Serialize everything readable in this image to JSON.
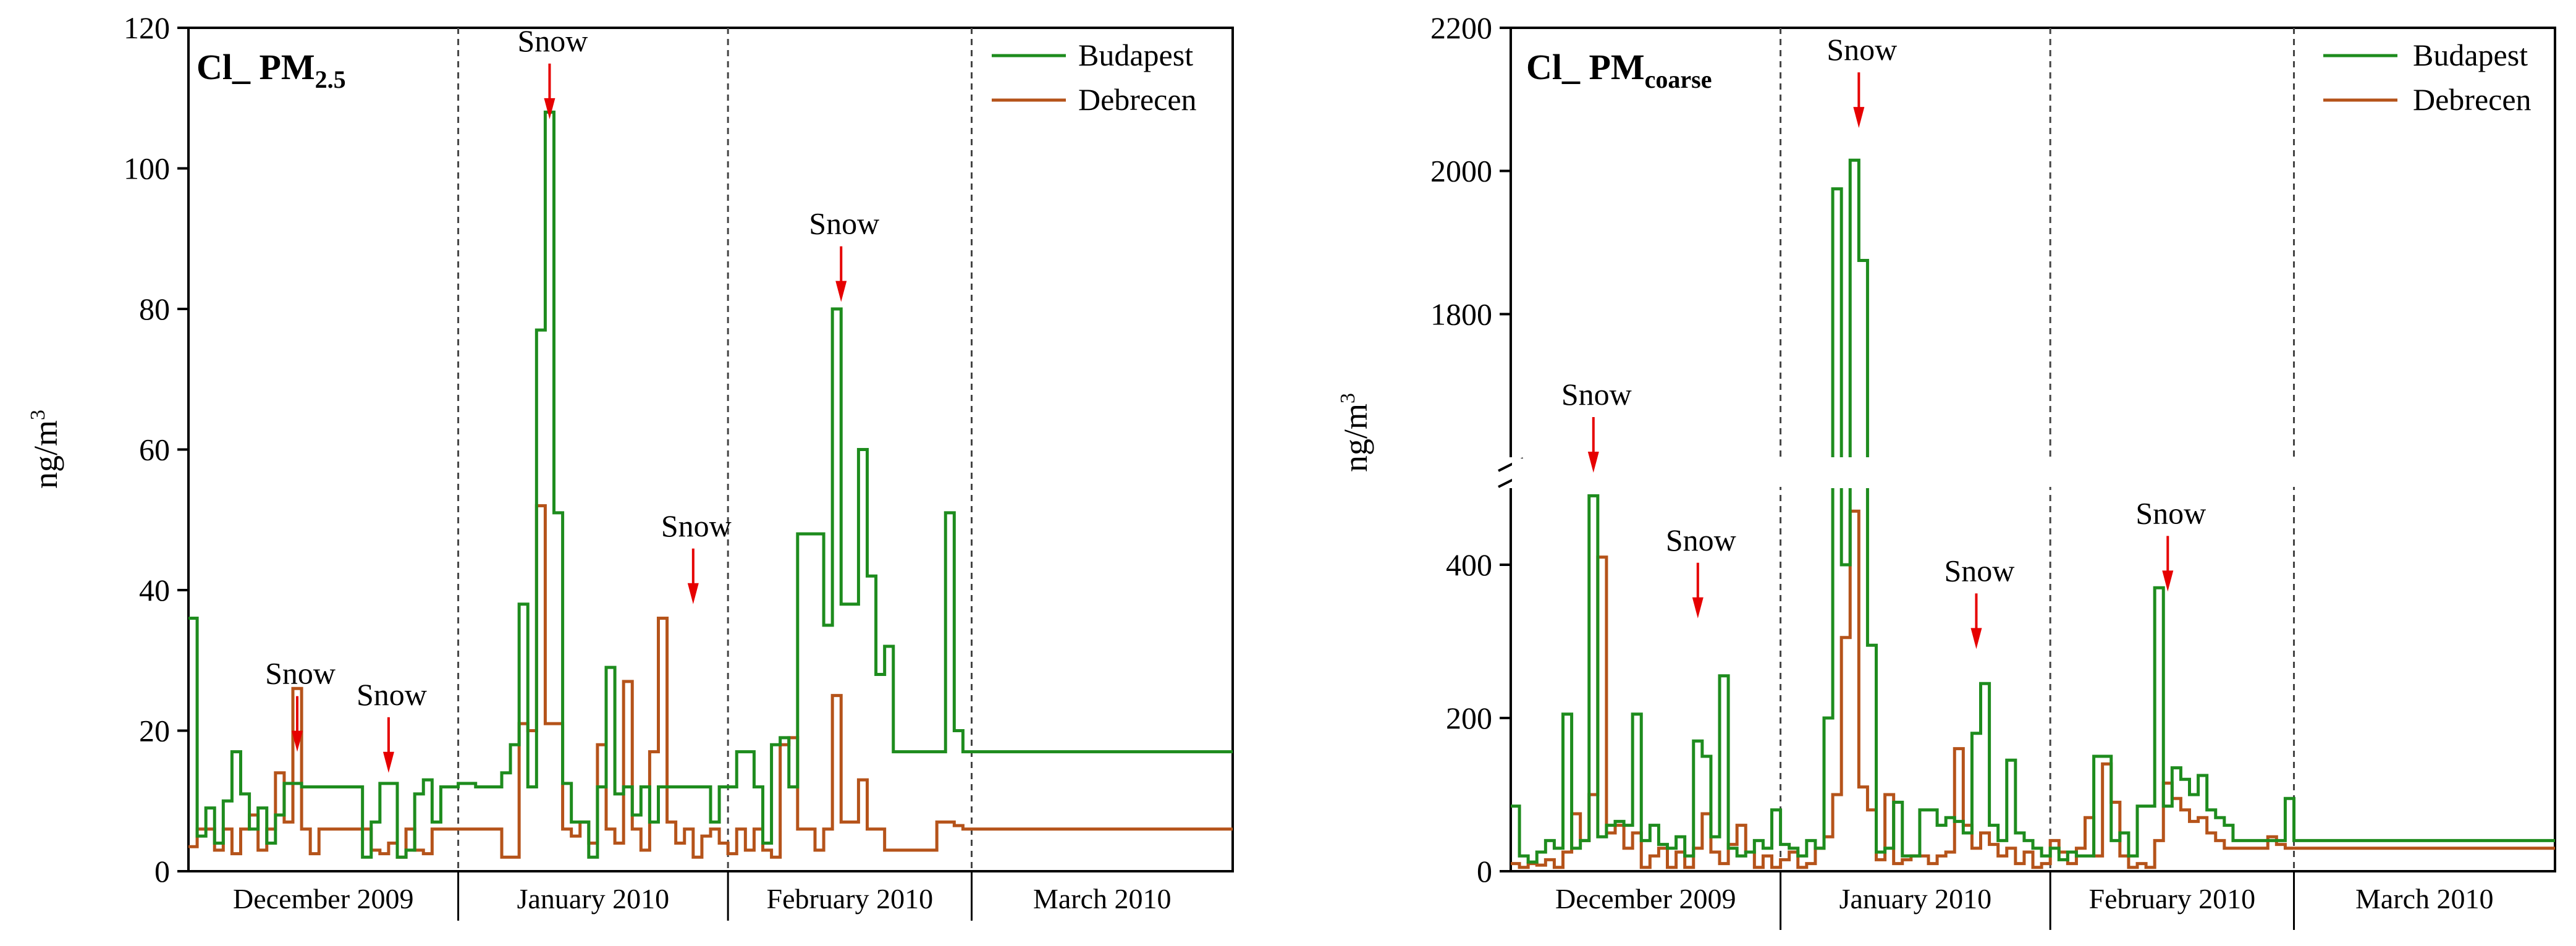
{
  "chart_data": [
    {
      "type": "line",
      "title_main": "Cl_ PM",
      "title_sub": "2.5",
      "ylabel": "ng/m",
      "ylabel_sup": "3",
      "ylim": [
        0,
        120
      ],
      "yticks": [
        "0",
        "20",
        "40",
        "60",
        "80",
        "100",
        "120"
      ],
      "months": [
        "December 2009",
        "January 2010",
        "February 2010",
        "March 2010"
      ],
      "legend_position": "top-right",
      "legend": [
        "Budapest",
        "Debrecen"
      ],
      "series": [
        {
          "name": "Budapest",
          "color": "#1e8c1e",
          "x": [
            0,
            1,
            2,
            3,
            4,
            5,
            6,
            7,
            8,
            9,
            10,
            11,
            12,
            13,
            14,
            15,
            16,
            17,
            18,
            19,
            20,
            21,
            22,
            23,
            24,
            25,
            26,
            27,
            28,
            29,
            30,
            31,
            32,
            33,
            34,
            35,
            36,
            37,
            38,
            39,
            40,
            41,
            42,
            43,
            44,
            45,
            46,
            47,
            48,
            49,
            50,
            51,
            52,
            53,
            54,
            55,
            56,
            57,
            58,
            59,
            60,
            61,
            62,
            63,
            64,
            65,
            66,
            67,
            68,
            69,
            70,
            71,
            72,
            73,
            74,
            75,
            76,
            77,
            78,
            79,
            80,
            81,
            82,
            83,
            84,
            85,
            86,
            87,
            88,
            89,
            90,
            91,
            92,
            93,
            94,
            95,
            96,
            97,
            98,
            99,
            100,
            101,
            102,
            103,
            104,
            105,
            106,
            107,
            108,
            109,
            110,
            111,
            112,
            113,
            114,
            115,
            116,
            117,
            118,
            119,
            120
          ],
          "y": [
            36,
            5,
            9,
            4,
            10,
            17,
            11,
            6,
            9,
            4,
            8,
            12.5,
            12.5,
            12,
            12,
            12,
            12,
            12,
            12,
            12,
            2,
            7,
            12.5,
            12.5,
            2,
            3,
            11,
            13,
            7,
            12,
            12,
            12.5,
            12.5,
            12,
            12,
            12,
            14,
            18,
            38,
            12,
            77,
            108,
            51,
            12.5,
            7,
            7,
            2,
            12,
            29,
            11,
            12,
            8,
            12,
            7,
            12,
            12,
            12,
            12,
            12,
            12,
            7,
            12,
            12,
            17,
            17,
            12,
            4,
            18,
            19,
            12,
            48,
            48,
            48,
            35,
            80,
            38,
            38,
            60,
            42,
            28,
            32,
            17,
            17,
            17,
            17,
            17,
            17,
            51,
            20,
            17,
            17,
            17,
            17,
            17,
            17,
            17,
            17,
            17,
            17,
            17,
            17,
            17,
            17,
            17,
            17,
            17,
            17,
            17,
            17,
            17,
            17,
            17,
            17,
            17,
            17,
            17,
            17,
            17,
            17,
            17,
            17
          ]
        },
        {
          "name": "Debrecen",
          "color": "#b5531a",
          "x": [
            0,
            1,
            2,
            3,
            4,
            5,
            6,
            7,
            8,
            9,
            10,
            11,
            12,
            13,
            14,
            15,
            16,
            17,
            18,
            19,
            20,
            21,
            22,
            23,
            24,
            25,
            26,
            27,
            28,
            29,
            30,
            31,
            32,
            33,
            34,
            35,
            36,
            37,
            38,
            39,
            40,
            41,
            42,
            43,
            44,
            45,
            46,
            47,
            48,
            49,
            50,
            51,
            52,
            53,
            54,
            55,
            56,
            57,
            58,
            59,
            60,
            61,
            62,
            63,
            64,
            65,
            66,
            67,
            68,
            69,
            70,
            71,
            72,
            73,
            74,
            75,
            76,
            77,
            78,
            79,
            80,
            81,
            82,
            83,
            84,
            85,
            86,
            87,
            88,
            89,
            90,
            91,
            92,
            93,
            94,
            95,
            96,
            97,
            98,
            99,
            100,
            101,
            102,
            103,
            104,
            105,
            106,
            107,
            108,
            109,
            110,
            111,
            112,
            113,
            114,
            115,
            116,
            117,
            118,
            119,
            120
          ],
          "y": [
            3.5,
            6,
            6,
            3,
            6,
            2.5,
            6,
            8,
            3,
            6,
            14,
            7,
            26,
            6,
            2.5,
            6,
            6,
            6,
            6,
            6,
            6,
            3,
            2.5,
            4,
            2,
            6,
            3,
            2.5,
            6,
            6,
            6,
            6,
            6,
            6,
            6,
            6,
            2,
            2,
            21,
            20,
            52,
            21,
            21,
            6,
            5,
            7,
            4,
            18,
            6,
            4,
            27,
            6,
            3,
            17,
            36,
            7,
            4,
            6,
            2,
            5,
            6,
            4,
            2.5,
            6,
            3,
            6,
            3,
            2,
            18,
            19,
            6,
            6,
            3,
            6,
            25,
            7,
            7,
            13,
            6,
            6,
            3,
            3,
            3,
            3,
            3,
            3,
            7,
            7,
            6.5,
            6,
            6,
            6,
            6,
            6,
            6,
            6,
            6,
            6,
            6,
            6,
            6,
            6,
            6,
            6,
            6,
            6,
            6,
            6,
            6,
            6,
            6,
            6,
            6,
            6,
            6,
            6,
            6,
            6,
            6,
            6,
            6
          ]
        }
      ],
      "annotations": [
        {
          "text": "Snow",
          "x": 12.5,
          "y": 17
        },
        {
          "text": "Snow",
          "x": 23,
          "y": 14
        },
        {
          "text": "Snow",
          "x": 41.5,
          "y": 107
        },
        {
          "text": "Snow",
          "x": 58,
          "y": 38
        },
        {
          "text": "Snow",
          "x": 75,
          "y": 81
        }
      ]
    },
    {
      "type": "line",
      "title_main": "Cl_ PM",
      "title_sub": "coarse",
      "ylabel": "ng/m",
      "ylabel_sup": "3",
      "broken_axis": true,
      "ylim_lower": [
        0,
        500
      ],
      "ylim_upper": [
        1600,
        2200
      ],
      "yticks_lower": [
        "0",
        "200",
        "400"
      ],
      "yticks_upper": [
        "1800",
        "2000",
        "2200"
      ],
      "months": [
        "December 2009",
        "January 2010",
        "February 2010",
        "March 2010"
      ],
      "legend_position": "top-right",
      "legend": [
        "Budapest",
        "Debrecen"
      ],
      "series": [
        {
          "name": "Budapest",
          "color": "#1e8c1e",
          "x": [
            0,
            1,
            2,
            3,
            4,
            5,
            6,
            7,
            8,
            9,
            10,
            11,
            12,
            13,
            14,
            15,
            16,
            17,
            18,
            19,
            20,
            21,
            22,
            23,
            24,
            25,
            26,
            27,
            28,
            29,
            30,
            31,
            32,
            33,
            34,
            35,
            36,
            37,
            38,
            39,
            40,
            41,
            42,
            43,
            44,
            45,
            46,
            47,
            48,
            49,
            50,
            51,
            52,
            53,
            54,
            55,
            56,
            57,
            58,
            59,
            60,
            61,
            62,
            63,
            64,
            65,
            66,
            67,
            68,
            69,
            70,
            71,
            72,
            73,
            74,
            75,
            76,
            77,
            78,
            79,
            80,
            81,
            82,
            83,
            84,
            85,
            86,
            87,
            88,
            89,
            90,
            91,
            92,
            93,
            94,
            95,
            96,
            97,
            98,
            99,
            100,
            101,
            102,
            103,
            104,
            105,
            106,
            107,
            108,
            109,
            110,
            111,
            112,
            113,
            114,
            115,
            116,
            117,
            118,
            119,
            120
          ],
          "y": [
            85,
            20,
            12,
            25,
            40,
            30,
            205,
            30,
            40,
            490,
            45,
            60,
            65,
            60,
            205,
            40,
            60,
            35,
            30,
            45,
            20,
            170,
            150,
            45,
            255,
            30,
            20,
            25,
            40,
            30,
            80,
            35,
            30,
            20,
            40,
            30,
            200,
            1975,
            400,
            2015,
            1875,
            295,
            25,
            30,
            90,
            20,
            20,
            80,
            80,
            60,
            70,
            65,
            50,
            180,
            245,
            60,
            40,
            145,
            50,
            40,
            30,
            20,
            30,
            15,
            25,
            20,
            20,
            150,
            150,
            40,
            50,
            20,
            85,
            85,
            370,
            85,
            135,
            120,
            100,
            125,
            80,
            70,
            60,
            40,
            40,
            40,
            40,
            40,
            40,
            95,
            40,
            40,
            40,
            40,
            40,
            40,
            40,
            40,
            40,
            40,
            40,
            40,
            40,
            40,
            40,
            40,
            40,
            40,
            40,
            40,
            40,
            40,
            40,
            40,
            40,
            40,
            40,
            40,
            40,
            40,
            40
          ]
        },
        {
          "name": "Debrecen",
          "color": "#b5531a",
          "x": [
            0,
            1,
            2,
            3,
            4,
            5,
            6,
            7,
            8,
            9,
            10,
            11,
            12,
            13,
            14,
            15,
            16,
            17,
            18,
            19,
            20,
            21,
            22,
            23,
            24,
            25,
            26,
            27,
            28,
            29,
            30,
            31,
            32,
            33,
            34,
            35,
            36,
            37,
            38,
            39,
            40,
            41,
            42,
            43,
            44,
            45,
            46,
            47,
            48,
            49,
            50,
            51,
            52,
            53,
            54,
            55,
            56,
            57,
            58,
            59,
            60,
            61,
            62,
            63,
            64,
            65,
            66,
            67,
            68,
            69,
            70,
            71,
            72,
            73,
            74,
            75,
            76,
            77,
            78,
            79,
            80,
            81,
            82,
            83,
            84,
            85,
            86,
            87,
            88,
            89,
            90,
            91,
            92,
            93,
            94,
            95,
            96,
            97,
            98,
            99,
            100,
            101,
            102,
            103,
            104,
            105,
            106,
            107,
            108,
            109,
            110,
            111,
            112,
            113,
            114,
            115,
            116,
            117,
            118,
            119,
            120
          ],
          "y": [
            10,
            5,
            10,
            8,
            15,
            5,
            25,
            75,
            40,
            100,
            410,
            50,
            60,
            30,
            50,
            5,
            20,
            30,
            5,
            25,
            5,
            30,
            75,
            25,
            10,
            35,
            60,
            25,
            5,
            20,
            5,
            15,
            25,
            5,
            10,
            30,
            45,
            100,
            305,
            470,
            110,
            80,
            15,
            100,
            10,
            15,
            20,
            20,
            10,
            20,
            25,
            160,
            60,
            30,
            50,
            35,
            20,
            30,
            10,
            25,
            5,
            10,
            40,
            25,
            10,
            30,
            70,
            20,
            140,
            90,
            20,
            5,
            10,
            5,
            40,
            115,
            95,
            80,
            65,
            70,
            50,
            40,
            30,
            30,
            30,
            30,
            30,
            45,
            35,
            30,
            30,
            30,
            30,
            30,
            30,
            30,
            30,
            30,
            30,
            30,
            30,
            30,
            30,
            30,
            30,
            30,
            30,
            30,
            30,
            30,
            30,
            30,
            30,
            30,
            30,
            30,
            30,
            30,
            30,
            30,
            30
          ]
        }
      ],
      "annotations": [
        {
          "text": "Snow",
          "x": 9.5,
          "y": 505
        },
        {
          "text": "Snow",
          "x": 21.5,
          "y": 330
        },
        {
          "text": "Snow",
          "x": 40,
          "y": 2060
        },
        {
          "text": "Snow",
          "x": 53.5,
          "y": 290
        },
        {
          "text": "Snow",
          "x": 75.5,
          "y": 365
        }
      ]
    }
  ]
}
